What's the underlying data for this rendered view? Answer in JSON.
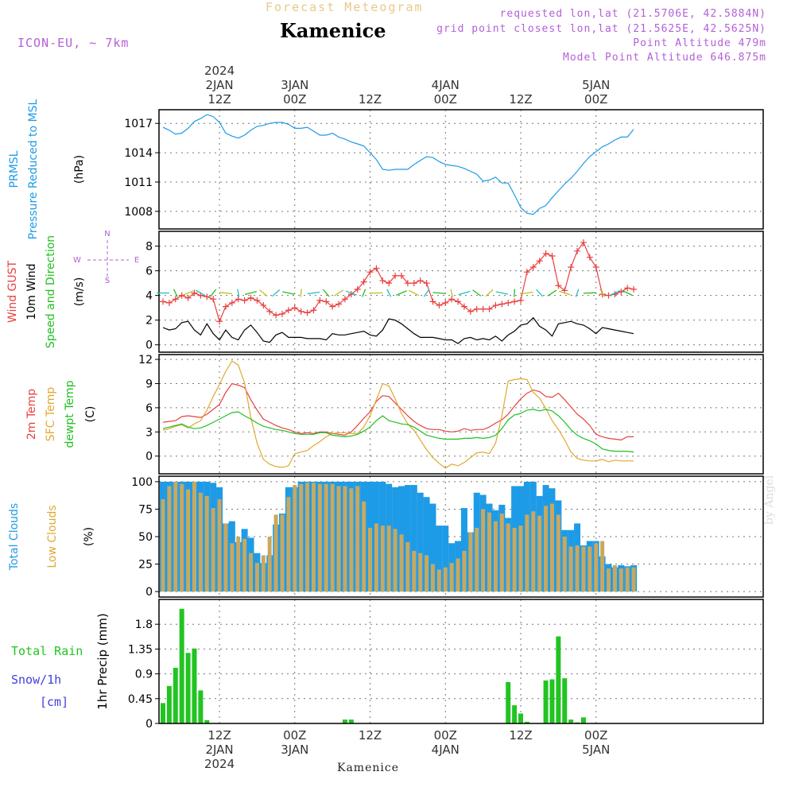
{
  "header": {
    "forecast_label": "Forecast Meteogram",
    "station": "Kamenice",
    "model": "ICON-EU, ~ 7km",
    "requested": "requested lon,lat (21.5706E, 42.5884N)",
    "grid_point": "grid point closest lon,lat (21.5625E, 42.5625N)",
    "point_altitude": "Point Altitude 479m",
    "model_altitude": "Model Point Altitude 646.875m",
    "footer_station": "Kamenice",
    "watermark": "by Angel"
  },
  "colors": {
    "pressure": "#1e9be6",
    "gust": "#e84040",
    "wind": "#000000",
    "temp": "#e84040",
    "sfc_temp": "#e0a830",
    "dewpt": "#20c020",
    "total_clouds": "#1e9be6",
    "low_clouds": "#c8a860",
    "rain": "#22c422",
    "snow": "#4040e0",
    "label_purple": "#b45fd8"
  },
  "chart_data": {
    "type": "meteogram",
    "time_axis": {
      "start_hour": 0,
      "end_hour": 95,
      "note_hours_from": "2024-01-02 03Z",
      "top_ticks": [
        {
          "hour": 9,
          "lines": [
            "2024",
            "2JAN",
            "12Z"
          ]
        },
        {
          "hour": 21,
          "lines": [
            "3JAN",
            "00Z"
          ]
        },
        {
          "hour": 33,
          "lines": [
            "12Z"
          ]
        },
        {
          "hour": 45,
          "lines": [
            "4JAN",
            "00Z"
          ]
        },
        {
          "hour": 57,
          "lines": [
            "12Z"
          ]
        },
        {
          "hour": 69,
          "lines": [
            "5JAN",
            "00Z"
          ]
        }
      ],
      "bottom_ticks": [
        {
          "hour": 9,
          "lines": [
            "12Z",
            "2JAN",
            "2024"
          ]
        },
        {
          "hour": 21,
          "lines": [
            "00Z",
            "3JAN"
          ]
        },
        {
          "hour": 33,
          "lines": [
            "12Z"
          ]
        },
        {
          "hour": 45,
          "lines": [
            "00Z",
            "4JAN"
          ]
        },
        {
          "hour": 57,
          "lines": [
            "12Z"
          ]
        },
        {
          "hour": 69,
          "lines": [
            "00Z",
            "5JAN"
          ]
        }
      ]
    },
    "panels": [
      {
        "id": "pressure",
        "labels": [
          "PRMSL",
          "Pressure Reduced to MSL"
        ],
        "unit": "(hPa)",
        "ylim": [
          1006.2,
          1018.4
        ],
        "yticks": [
          1008,
          1011,
          1014,
          1017
        ],
        "series": [
          {
            "name": "PRMSL",
            "type": "line",
            "values": [
              1016.6,
              1016.3,
              1015.9,
              1016.0,
              1016.5,
              1017.2,
              1017.5,
              1017.9,
              1017.7,
              1017.1,
              1016.0,
              1015.7,
              1015.5,
              1015.8,
              1016.3,
              1016.7,
              1016.8,
              1017.0,
              1017.1,
              1017.1,
              1016.9,
              1016.5,
              1016.5,
              1016.6,
              1016.2,
              1015.8,
              1015.8,
              1016.0,
              1015.6,
              1015.4,
              1015.1,
              1014.9,
              1014.7,
              1014.0,
              1013.3,
              1012.3,
              1012.2,
              1012.3,
              1012.3,
              1012.3,
              1012.8,
              1013.2,
              1013.6,
              1013.5,
              1013.1,
              1012.8,
              1012.7,
              1012.6,
              1012.4,
              1012.1,
              1011.8,
              1011.1,
              1011.2,
              1011.5,
              1010.9,
              1010.9,
              1009.7,
              1008.4,
              1007.8,
              1007.7,
              1008.3,
              1008.6,
              1009.4,
              1010.1,
              1010.8,
              1011.4,
              1012.1,
              1012.9,
              1013.6,
              1014.1,
              1014.6,
              1014.9,
              1015.3,
              1015.6,
              1015.6,
              1016.4
            ]
          }
        ]
      },
      {
        "id": "wind",
        "labels": [
          "Wind GUST",
          "10m Wind",
          "Speed and Direction"
        ],
        "unit": "(m/s)",
        "ylim": [
          -0.6,
          9.2
        ],
        "yticks": [
          0,
          2,
          4,
          6,
          8
        ],
        "compass": {
          "n": "N",
          "s": "S",
          "w": "W",
          "e": "E"
        },
        "series": [
          {
            "name": "Wind GUST",
            "type": "line-marker",
            "values": [
              3.5,
              3.4,
              3.7,
              4.0,
              3.8,
              4.2,
              4.0,
              3.9,
              3.7,
              1.9,
              3.1,
              3.4,
              3.7,
              3.6,
              3.8,
              3.6,
              3.2,
              2.7,
              2.4,
              2.5,
              2.8,
              3.0,
              2.7,
              2.6,
              2.8,
              3.6,
              3.5,
              3.1,
              3.3,
              3.7,
              4.1,
              4.5,
              5.1,
              5.9,
              6.2,
              5.2,
              5.0,
              5.6,
              5.6,
              5.0,
              5.0,
              5.2,
              5.0,
              3.5,
              3.2,
              3.4,
              3.7,
              3.5,
              3.1,
              2.7,
              2.9,
              2.9,
              2.9,
              3.2,
              3.3,
              3.4,
              3.5,
              3.6,
              5.9,
              6.3,
              6.8,
              7.4,
              7.2,
              4.8,
              4.4,
              6.3,
              7.6,
              8.3,
              7.1,
              6.3,
              4.1,
              4.0,
              4.1,
              4.3,
              4.6,
              4.5
            ]
          },
          {
            "name": "10m Wind",
            "type": "line",
            "values": [
              1.4,
              1.2,
              1.3,
              1.8,
              1.9,
              1.2,
              0.8,
              1.7,
              0.9,
              0.4,
              1.2,
              0.6,
              0.4,
              1.2,
              1.6,
              1.0,
              0.3,
              0.2,
              0.8,
              1.0,
              0.6,
              0.6,
              0.6,
              0.5,
              0.5,
              0.5,
              0.4,
              0.9,
              0.8,
              0.8,
              0.9,
              1.0,
              1.1,
              0.8,
              0.7,
              1.2,
              2.1,
              2.0,
              1.7,
              1.3,
              0.9,
              0.6,
              0.6,
              0.6,
              0.5,
              0.4,
              0.4,
              0.1,
              0.5,
              0.6,
              0.4,
              0.5,
              0.4,
              0.7,
              0.3,
              0.8,
              1.1,
              1.6,
              1.7,
              2.2,
              1.5,
              1.2,
              0.7,
              1.7,
              1.8,
              1.9,
              1.7,
              1.6,
              1.3,
              0.9,
              1.4,
              1.3,
              1.2,
              1.1,
              1.0,
              0.9
            ]
          }
        ],
        "arrows_row_value": 4.2
      },
      {
        "id": "temp",
        "labels": [
          "2m Temp",
          "SFC Temp",
          "dewpt Temp"
        ],
        "unit": "(C)",
        "ylim": [
          -2.2,
          12.6
        ],
        "yticks": [
          0,
          3,
          6,
          9,
          12
        ],
        "series": [
          {
            "name": "2m Temp",
            "type": "line",
            "values": [
              4.2,
              4.3,
              4.4,
              4.9,
              5.0,
              4.9,
              4.8,
              5.2,
              5.8,
              6.4,
              7.9,
              9.0,
              8.8,
              8.5,
              7.0,
              5.7,
              4.6,
              4.2,
              3.8,
              3.5,
              3.3,
              3.0,
              2.8,
              2.9,
              2.8,
              3.0,
              3.0,
              2.8,
              2.7,
              2.6,
              3.0,
              3.8,
              4.7,
              5.5,
              6.8,
              7.5,
              7.4,
              6.6,
              5.8,
              5.0,
              4.3,
              3.8,
              3.4,
              3.3,
              3.3,
              3.1,
              3.0,
              3.1,
              3.4,
              3.2,
              3.3,
              3.3,
              3.6,
              4.1,
              4.5,
              5.2,
              6.2,
              7.1,
              7.8,
              8.2,
              8.0,
              7.4,
              7.3,
              7.8,
              7.0,
              6.1,
              5.2,
              4.6,
              3.8,
              2.7,
              2.4,
              2.2,
              2.1,
              2.0,
              2.4,
              2.4
            ]
          },
          {
            "name": "SFC Temp",
            "type": "line",
            "values": [
              3.2,
              3.4,
              3.7,
              3.9,
              3.5,
              4.0,
              4.4,
              5.7,
              7.4,
              8.9,
              10.5,
              11.8,
              11.3,
              9.1,
              4.8,
              1.6,
              -0.4,
              -1.0,
              -1.3,
              -1.4,
              -1.2,
              0.3,
              0.5,
              0.7,
              1.3,
              1.8,
              2.4,
              2.8,
              2.9,
              2.9,
              2.8,
              2.8,
              3.6,
              5.0,
              7.0,
              9.0,
              8.7,
              7.1,
              5.3,
              4.0,
              3.2,
              2.0,
              0.8,
              -0.2,
              -0.9,
              -1.5,
              -1.0,
              -1.2,
              -0.8,
              -0.2,
              0.4,
              0.5,
              0.3,
              1.6,
              5.0,
              9.3,
              9.5,
              9.6,
              9.5,
              7.9,
              7.2,
              5.9,
              4.4,
              3.3,
              2.0,
              0.5,
              -0.3,
              -0.5,
              -0.6,
              -0.6,
              -0.4,
              -0.7,
              -0.5,
              -0.6,
              -0.6,
              -0.6
            ]
          },
          {
            "name": "dewpt Temp",
            "type": "line",
            "values": [
              3.4,
              3.6,
              3.8,
              4.0,
              3.6,
              3.4,
              3.5,
              3.8,
              4.2,
              4.6,
              5.0,
              5.4,
              5.5,
              5.0,
              4.6,
              4.1,
              3.7,
              3.5,
              3.3,
              3.2,
              3.0,
              2.8,
              2.7,
              2.7,
              2.7,
              2.9,
              2.9,
              2.6,
              2.5,
              2.4,
              2.5,
              2.7,
              3.1,
              3.6,
              4.4,
              5.0,
              4.4,
              4.2,
              4.0,
              3.9,
              3.6,
              3.1,
              2.6,
              2.4,
              2.2,
              2.1,
              2.1,
              2.1,
              2.2,
              2.2,
              2.3,
              2.2,
              2.3,
              2.6,
              3.4,
              4.5,
              5.1,
              5.3,
              5.7,
              5.8,
              5.6,
              5.8,
              5.6,
              5.0,
              4.2,
              3.3,
              2.6,
              2.2,
              1.9,
              1.5,
              0.9,
              0.7,
              0.6,
              0.6,
              0.6,
              0.5
            ]
          }
        ]
      },
      {
        "id": "clouds",
        "labels": [
          "Total Clouds",
          "Low Clouds"
        ],
        "unit": "(%)",
        "ylim": [
          -5,
          105
        ],
        "yticks": [
          0,
          25,
          50,
          75,
          100
        ],
        "series": [
          {
            "name": "Total Clouds",
            "type": "bar",
            "values": [
              100,
              100,
              100,
              100,
              100,
              100,
              100,
              100,
              99,
              95,
              62,
              64,
              45,
              57,
              49,
              35,
              26,
              33,
              61,
              71,
              95,
              95,
              100,
              100,
              100,
              100,
              100,
              100,
              100,
              100,
              100,
              100,
              100,
              100,
              100,
              100,
              98,
              95,
              96,
              97,
              97,
              90,
              86,
              80,
              60,
              60,
              44,
              46,
              76,
              54,
              90,
              88,
              80,
              74,
              79,
              67,
              96,
              96,
              100,
              100,
              87,
              97,
              94,
              83,
              56,
              56,
              62,
              42,
              46,
              46,
              32,
              25,
              22,
              24,
              23,
              24
            ]
          },
          {
            "name": "Low Clouds",
            "type": "bar",
            "values": [
              84,
              96,
              100,
              98,
              93,
              100,
              90,
              87,
              76,
              84,
              62,
              44,
              50,
              48,
              35,
              26,
              33,
              50,
              70,
              70,
              86,
              97,
              98,
              99,
              99,
              98,
              98,
              98,
              96,
              96,
              94,
              96,
              82,
              58,
              62,
              60,
              60,
              57,
              52,
              45,
              37,
              35,
              33,
              25,
              20,
              22,
              26,
              30,
              37,
              54,
              58,
              75,
              72,
              64,
              71,
              62,
              58,
              60,
              70,
              73,
              69,
              78,
              80,
              70,
              50,
              41,
              42,
              41,
              41,
              44,
              46,
              21,
              24,
              21,
              22,
              22
            ]
          }
        ]
      },
      {
        "id": "precip",
        "labels": [
          "Total Rain",
          "Snow/1h",
          "[cm]"
        ],
        "unit": "1hr Precip (mm)",
        "ylim": [
          0,
          2.25
        ],
        "yticks": [
          0,
          0.45,
          0.9,
          1.35,
          1.8
        ],
        "series": [
          {
            "name": "Total Rain",
            "type": "bar",
            "values": [
              0.37,
              0.68,
              1.01,
              2.08,
              1.28,
              1.36,
              0.6,
              0.06,
              0,
              0,
              0,
              0,
              0,
              0,
              0,
              0,
              0,
              0,
              0,
              0,
              0,
              0,
              0,
              0,
              0,
              0,
              0,
              0,
              0,
              0.07,
              0.07,
              0,
              0,
              0,
              0,
              0,
              0,
              0,
              0,
              0,
              0,
              0,
              0,
              0,
              0,
              0,
              0,
              0,
              0,
              0,
              0,
              0,
              0,
              0,
              0,
              0.75,
              0.33,
              0.18,
              0.03,
              0,
              0,
              0.78,
              0.8,
              1.58,
              0.82,
              0.07,
              0.02,
              0.11,
              0,
              0,
              0,
              0,
              0,
              0,
              0,
              0
            ]
          }
        ]
      }
    ]
  }
}
